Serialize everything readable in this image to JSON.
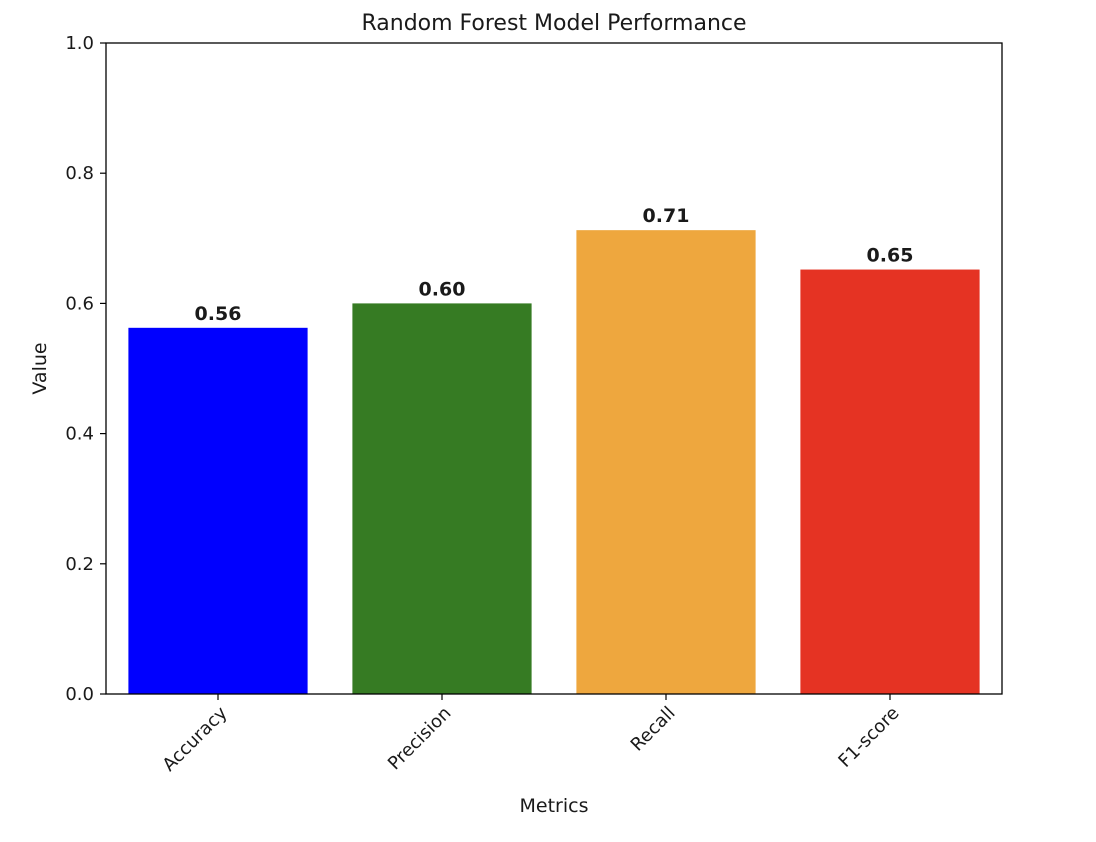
{
  "chart_data": {
    "type": "bar",
    "title": "Random Forest Model Performance",
    "xlabel": "Metrics",
    "ylabel": "Value",
    "categories": [
      "Accuracy",
      "Precision",
      "Recall",
      "F1-score"
    ],
    "values": [
      0.5625,
      0.6,
      0.7125,
      0.652
    ],
    "value_labels": [
      "0.56",
      "0.60",
      "0.71",
      "0.65"
    ],
    "colors": [
      "#0000ff",
      "#367b23",
      "#eea73e",
      "#e53323"
    ],
    "ylim": [
      0,
      1.0
    ],
    "yticks": [
      0.0,
      0.2,
      0.4,
      0.6,
      0.8,
      1.0
    ],
    "ytick_labels": [
      "0.0",
      "0.2",
      "0.4",
      "0.6",
      "0.8",
      "1.0"
    ],
    "xtick_rotation": 45,
    "grid": false,
    "legend": null
  }
}
